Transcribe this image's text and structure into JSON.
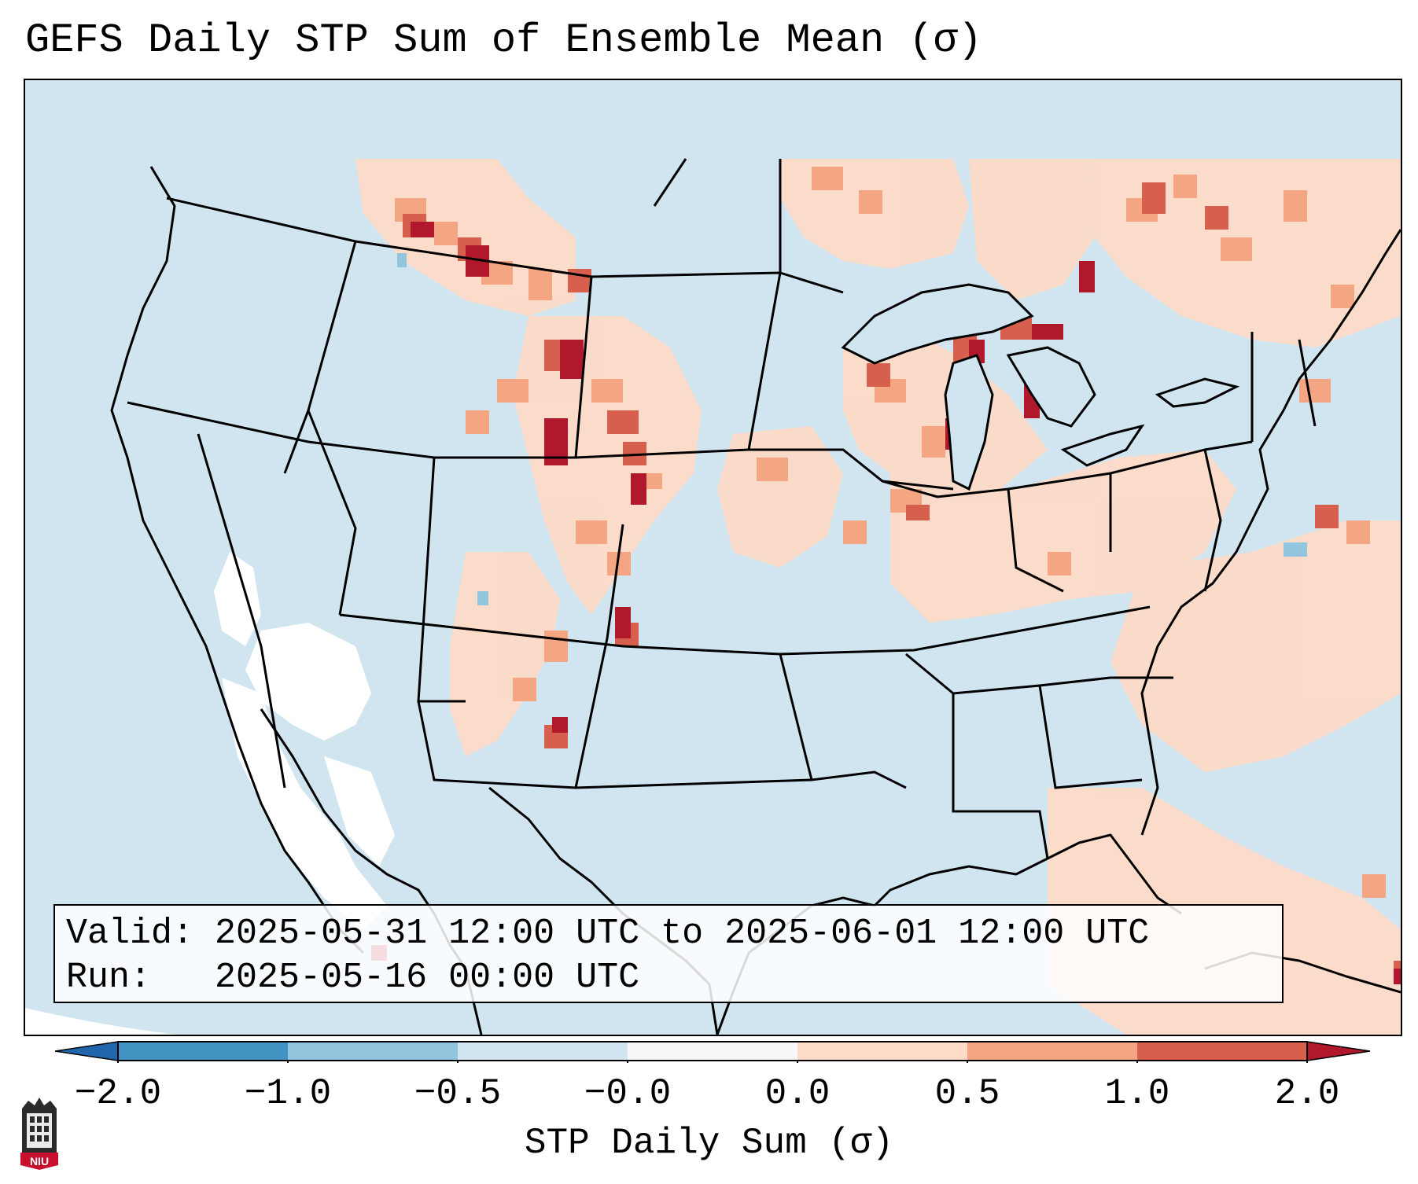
{
  "title": "GEFS Daily STP Sum of Ensemble Mean (σ)",
  "info": {
    "valid_label": "Valid:",
    "valid_value": "2025-05-31 12:00 UTC to 2025-06-01 12:00 UTC",
    "run_label": "Run:",
    "run_value": "2025-05-16 00:00 UTC"
  },
  "colorbar": {
    "label": "STP Daily Sum (σ)",
    "ticks": [
      "−2.0",
      "−1.0",
      "−0.5",
      "−0.0",
      "0.0",
      "0.5",
      "1.0",
      "2.0"
    ],
    "bins": [
      {
        "range": "-2.0 to -1.0",
        "color": "#4393c3"
      },
      {
        "range": "-1.0 to -0.5",
        "color": "#92c5de"
      },
      {
        "range": "-0.5 to 0.0",
        "color": "#d1e5f0"
      },
      {
        "range": "0.0",
        "color": "#f7f7f7"
      },
      {
        "range": "0.0 to 0.5",
        "color": "#fddbc7"
      },
      {
        "range": "0.5 to 1.0",
        "color": "#f4a582"
      },
      {
        "range": "1.0 to 2.0",
        "color": "#d6604d"
      }
    ],
    "under_color": "#2166ac",
    "over_color": "#b2182b"
  },
  "logo": {
    "text": "NIU",
    "color": "#c8102e"
  }
}
